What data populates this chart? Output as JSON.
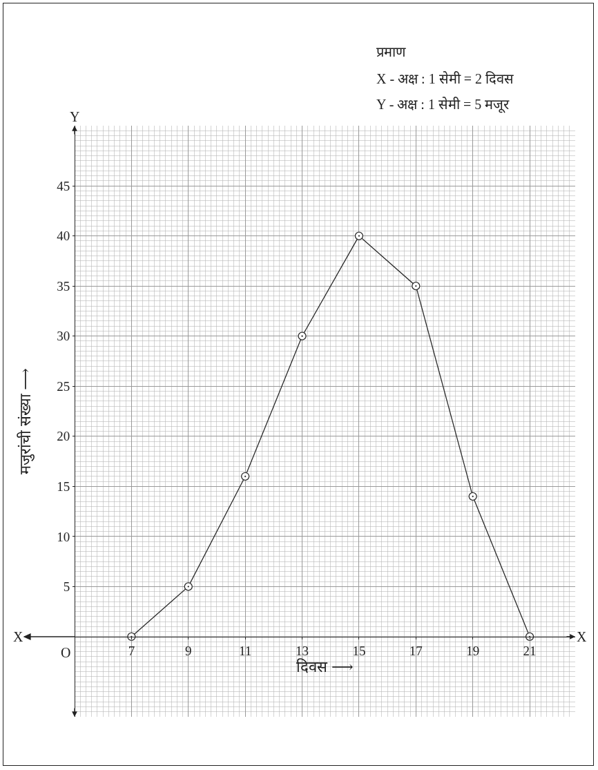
{
  "chart_data": {
    "type": "line",
    "xlabel": "दिवस ⟶",
    "ylabel": "मजुरांची संख्या ⟶",
    "x": [
      7,
      9,
      11,
      13,
      15,
      17,
      19,
      21
    ],
    "series": [
      {
        "color": "#2b2b2b",
        "values": [
          0,
          5,
          16,
          30,
          40,
          35,
          14,
          0
        ]
      }
    ],
    "xlim": [
      5,
      22.6
    ],
    "xticks": [
      7,
      9,
      11,
      13,
      15,
      17,
      19,
      21
    ],
    "ylim": [
      -8,
      51
    ],
    "yticks": [
      5,
      10,
      15,
      20,
      25,
      30,
      35,
      40,
      45
    ],
    "grid": true,
    "marker": "circle",
    "line_style": "solid",
    "annotations": [
      "प्रमाण",
      "X - अक्ष : 1 सेमी = 2 दिवस",
      "Y - अक्ष : 1 सेमी = 5 मजूर",
      "X",
      "X",
      "Y",
      "O"
    ]
  }
}
